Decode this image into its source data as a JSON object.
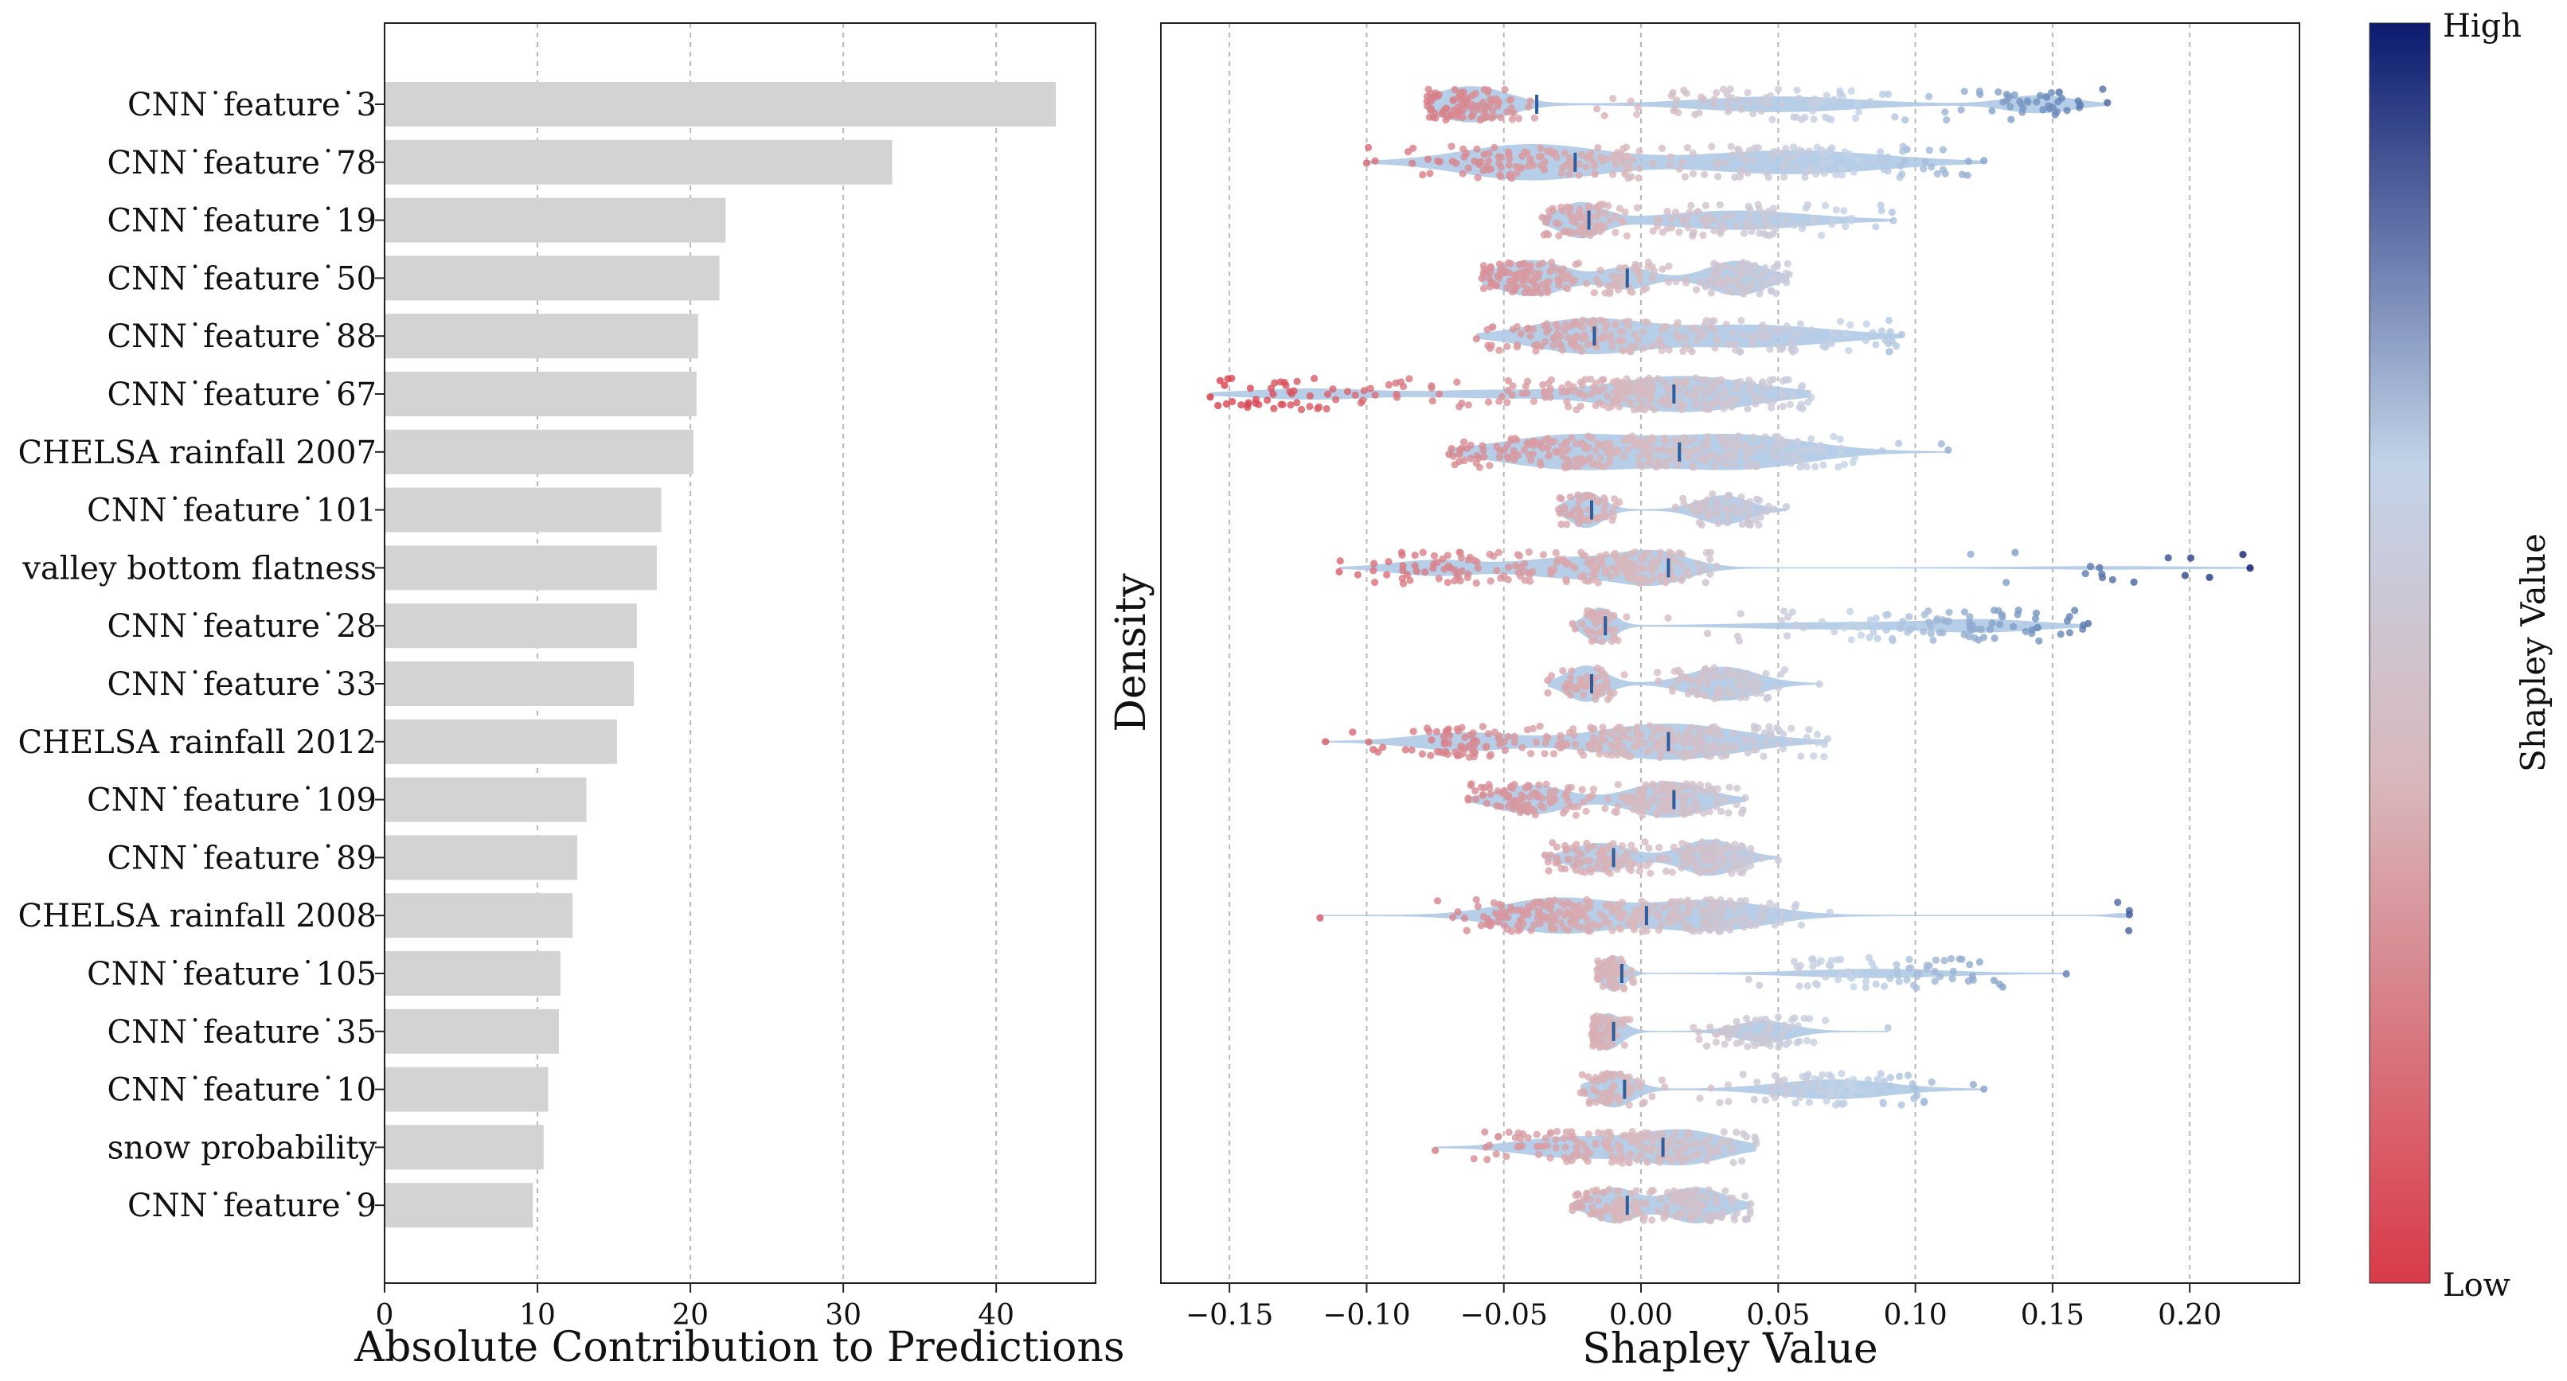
{
  "colors": {
    "bar": "#d3d3d3",
    "grid": "#b8b8b8",
    "violin": "#a9c6e3",
    "median": "#2f5d9b",
    "low": "#d93a48",
    "mid": "#c9c9d4",
    "midBlue": "#c2d3e8",
    "high": "#0b1a6e"
  },
  "chart_data": [
    {
      "type": "bar",
      "orientation": "horizontal",
      "title": "",
      "xlabel": "Absolute Contribution to Predictions",
      "ylabel": "",
      "xlim": [
        0,
        46.5
      ],
      "xticks": [
        0,
        10,
        20,
        30,
        40
      ],
      "grid": "x",
      "categories": [
        "CNN˙feature˙3",
        "CNN˙feature˙78",
        "CNN˙feature˙19",
        "CNN˙feature˙50",
        "CNN˙feature˙88",
        "CNN˙feature˙67",
        "CHELSA rainfall 2007",
        "CNN˙feature˙101",
        "valley bottom flatness",
        "CNN˙feature˙28",
        "CNN˙feature˙33",
        "CHELSA rainfall 2012",
        "CNN˙feature˙109",
        "CNN˙feature˙89",
        "CHELSA rainfall 2008",
        "CNN˙feature˙105",
        "CNN˙feature˙35",
        "CNN˙feature˙10",
        "snow probability",
        "CNN˙feature˙9"
      ],
      "values": [
        43.9,
        33.2,
        22.3,
        21.9,
        20.5,
        20.4,
        20.2,
        18.1,
        17.8,
        16.5,
        16.3,
        15.2,
        13.2,
        12.6,
        12.3,
        11.5,
        11.4,
        10.7,
        10.4,
        9.7
      ]
    },
    {
      "type": "scatter",
      "subtype": "violin-beeswarm",
      "title": "",
      "xlabel": "Shapley Value",
      "ylabel": "Density",
      "xlim": [
        -0.175,
        0.24
      ],
      "xticks": [
        -0.15,
        -0.1,
        -0.05,
        0.0,
        0.05,
        0.1,
        0.15,
        0.2
      ],
      "xtick_labels": [
        "−0.15",
        "−0.10",
        "−0.05",
        "0.00",
        "0.05",
        "0.10",
        "0.15",
        "0.20"
      ],
      "grid": "x",
      "colorbar": {
        "title": "Shapley Value",
        "high_label": "High",
        "low_label": "Low"
      },
      "series": [
        {
          "name": "CNN˙feature˙3",
          "median": -0.038,
          "min": -0.078,
          "max": 0.17,
          "clusters": [
            {
              "center": -0.062,
              "spread": 0.013,
              "n": 90
            },
            {
              "center": 0.05,
              "spread": 0.028,
              "n": 80
            },
            {
              "center": 0.145,
              "spread": 0.012,
              "n": 40
            }
          ]
        },
        {
          "name": "CNN˙feature˙78",
          "median": -0.024,
          "min": -0.1,
          "max": 0.125,
          "clusters": [
            {
              "center": -0.04,
              "spread": 0.025,
              "n": 120
            },
            {
              "center": 0.055,
              "spread": 0.032,
              "n": 100
            }
          ]
        },
        {
          "name": "CNN˙feature˙19",
          "median": -0.019,
          "min": -0.036,
          "max": 0.092,
          "clusters": [
            {
              "center": -0.022,
              "spread": 0.008,
              "n": 60
            },
            {
              "center": 0.035,
              "spread": 0.025,
              "n": 100
            }
          ]
        },
        {
          "name": "CNN˙feature˙50",
          "median": -0.005,
          "min": -0.058,
          "max": 0.054,
          "clusters": [
            {
              "center": -0.04,
              "spread": 0.012,
              "n": 100
            },
            {
              "center": -0.005,
              "spread": 0.008,
              "n": 40
            },
            {
              "center": 0.035,
              "spread": 0.01,
              "n": 80
            }
          ]
        },
        {
          "name": "CNN˙feature˙88",
          "median": -0.017,
          "min": -0.06,
          "max": 0.095,
          "clusters": [
            {
              "center": -0.02,
              "spread": 0.02,
              "n": 110
            },
            {
              "center": 0.04,
              "spread": 0.028,
              "n": 100
            }
          ]
        },
        {
          "name": "CNN˙feature˙67",
          "median": 0.012,
          "min": -0.157,
          "max": 0.062,
          "clusters": [
            {
              "center": -0.12,
              "spread": 0.022,
              "n": 50
            },
            {
              "center": -0.055,
              "spread": 0.02,
              "n": 30
            },
            {
              "center": 0.015,
              "spread": 0.025,
              "n": 200
            }
          ]
        },
        {
          "name": "CHELSA rainfall 2007",
          "median": 0.014,
          "min": -0.07,
          "max": 0.112,
          "clusters": [
            {
              "center": -0.025,
              "spread": 0.025,
              "n": 140
            },
            {
              "center": 0.035,
              "spread": 0.025,
              "n": 140
            }
          ]
        },
        {
          "name": "CNN˙feature˙101",
          "median": -0.018,
          "min": -0.03,
          "max": 0.053,
          "clusters": [
            {
              "center": -0.02,
              "spread": 0.006,
              "n": 50
            },
            {
              "center": 0.03,
              "spread": 0.009,
              "n": 60
            }
          ]
        },
        {
          "name": "valley bottom flatness",
          "median": 0.01,
          "min": -0.11,
          "max": 0.222,
          "clusters": [
            {
              "center": -0.075,
              "spread": 0.015,
              "n": 50
            },
            {
              "center": -0.025,
              "spread": 0.018,
              "n": 80
            },
            {
              "center": 0.005,
              "spread": 0.012,
              "n": 80
            },
            {
              "center": 0.17,
              "spread": 0.03,
              "n": 15
            }
          ]
        },
        {
          "name": "CNN˙feature˙28",
          "median": -0.013,
          "min": -0.025,
          "max": 0.163,
          "clusters": [
            {
              "center": -0.015,
              "spread": 0.005,
              "n": 40
            },
            {
              "center": 0.07,
              "spread": 0.03,
              "n": 40
            },
            {
              "center": 0.125,
              "spread": 0.02,
              "n": 50
            }
          ]
        },
        {
          "name": "CNN˙feature˙33",
          "median": -0.018,
          "min": -0.034,
          "max": 0.065,
          "clusters": [
            {
              "center": -0.02,
              "spread": 0.007,
              "n": 50
            },
            {
              "center": 0.03,
              "spread": 0.012,
              "n": 80
            }
          ]
        },
        {
          "name": "CHELSA rainfall 2012",
          "median": 0.01,
          "min": -0.115,
          "max": 0.068,
          "clusters": [
            {
              "center": -0.065,
              "spread": 0.018,
              "n": 70
            },
            {
              "center": 0.01,
              "spread": 0.025,
              "n": 200
            }
          ]
        },
        {
          "name": "CNN˙feature˙109",
          "median": 0.012,
          "min": -0.063,
          "max": 0.038,
          "clusters": [
            {
              "center": -0.04,
              "spread": 0.012,
              "n": 90
            },
            {
              "center": 0.01,
              "spread": 0.013,
              "n": 120
            }
          ]
        },
        {
          "name": "CNN˙feature˙89",
          "median": -0.01,
          "min": -0.035,
          "max": 0.05,
          "clusters": [
            {
              "center": -0.015,
              "spread": 0.01,
              "n": 80
            },
            {
              "center": 0.025,
              "spread": 0.01,
              "n": 100
            }
          ]
        },
        {
          "name": "CHELSA rainfall 2008",
          "median": 0.002,
          "min": -0.117,
          "max": 0.178,
          "clusters": [
            {
              "center": -0.03,
              "spread": 0.02,
              "n": 150
            },
            {
              "center": 0.025,
              "spread": 0.02,
              "n": 130
            },
            {
              "center": 0.175,
              "spread": 0.003,
              "n": 3
            }
          ]
        },
        {
          "name": "CNN˙feature˙105",
          "median": -0.007,
          "min": -0.016,
          "max": 0.155,
          "clusters": [
            {
              "center": -0.01,
              "spread": 0.004,
              "n": 50
            },
            {
              "center": 0.085,
              "spread": 0.025,
              "n": 70
            }
          ]
        },
        {
          "name": "CNN˙feature˙35",
          "median": -0.01,
          "min": -0.018,
          "max": 0.09,
          "clusters": [
            {
              "center": -0.012,
              "spread": 0.005,
              "n": 60
            },
            {
              "center": 0.045,
              "spread": 0.01,
              "n": 70
            }
          ]
        },
        {
          "name": "CNN˙feature˙10",
          "median": -0.006,
          "min": -0.022,
          "max": 0.125,
          "clusters": [
            {
              "center": -0.01,
              "spread": 0.007,
              "n": 60
            },
            {
              "center": 0.07,
              "spread": 0.02,
              "n": 90
            }
          ]
        },
        {
          "name": "snow probability",
          "median": 0.008,
          "min": -0.075,
          "max": 0.042,
          "clusters": [
            {
              "center": -0.025,
              "spread": 0.018,
              "n": 80
            },
            {
              "center": 0.015,
              "spread": 0.015,
              "n": 110
            }
          ]
        },
        {
          "name": "CNN˙feature˙9",
          "median": -0.005,
          "min": -0.025,
          "max": 0.04,
          "clusters": [
            {
              "center": -0.01,
              "spread": 0.008,
              "n": 70
            },
            {
              "center": 0.02,
              "spread": 0.01,
              "n": 90
            }
          ]
        }
      ]
    }
  ]
}
